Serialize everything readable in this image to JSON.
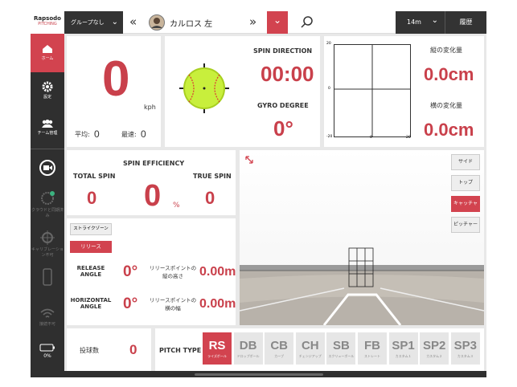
{
  "sidebar": {
    "logo": "Rapsodo",
    "logo_sub": "PITCHING",
    "nav": [
      "ホーム",
      "設定",
      "チーム管理"
    ],
    "status": [
      "クラウドと同期済み",
      "キャリブレーション不可",
      "接続不可"
    ],
    "battery": "0%"
  },
  "topbar": {
    "group": "グループなし",
    "player": "カルロス 左",
    "distance": "14m",
    "history": "履歴"
  },
  "speed": {
    "value": 0,
    "unit": "kph",
    "avg_label": "平均:",
    "avg": 0,
    "max_label": "最速:",
    "max": 0
  },
  "spin": {
    "direction_label": "SPIN DIRECTION",
    "direction": "00:00",
    "gyro_label": "GYRO DEGREE",
    "gyro": "0°"
  },
  "movement": {
    "y_ticks": [
      20,
      0,
      -20
    ],
    "x_ticks": [
      0,
      20
    ],
    "vertical_label": "縦の変化量",
    "vertical": "0.0cm",
    "horizontal_label": "横の変化量",
    "horizontal": "0.0cm"
  },
  "efficiency": {
    "title": "SPIN EFFICIENCY",
    "total_label": "TOTAL SPIN",
    "total": 0,
    "value": 0,
    "unit": "%",
    "true_label": "TRUE SPIN",
    "true": 0
  },
  "release": {
    "tabs": [
      "ストライクゾーン",
      "リリース"
    ],
    "release_angle_label": "RELEASE ANGLE",
    "release_angle": "0°",
    "height_label": "リリースポイントの縦の高さ",
    "height": "0.00m",
    "horizontal_angle_label": "HORIZONTAL ANGLE",
    "horizontal_angle": "0°",
    "width_label": "リリースポイントの横の幅",
    "width": "0.00m"
  },
  "views": [
    "サイド",
    "トップ",
    "キャッチャー",
    "ピッチャー"
  ],
  "count": {
    "label": "投球数",
    "value": 0
  },
  "pitch_type": {
    "label": "PITCH TYPE",
    "types": [
      {
        "code": "RS",
        "name": "ライズボール"
      },
      {
        "code": "DB",
        "name": "ドロップボール"
      },
      {
        "code": "CB",
        "name": "カーブ"
      },
      {
        "code": "CH",
        "name": "チェンジアップ"
      },
      {
        "code": "SB",
        "name": "スクリューボール"
      },
      {
        "code": "FB",
        "name": "ストレート"
      },
      {
        "code": "SP1",
        "name": "カスタム１"
      },
      {
        "code": "SP2",
        "name": "カスタム２"
      },
      {
        "code": "SP3",
        "name": "カスタム３"
      }
    ]
  }
}
